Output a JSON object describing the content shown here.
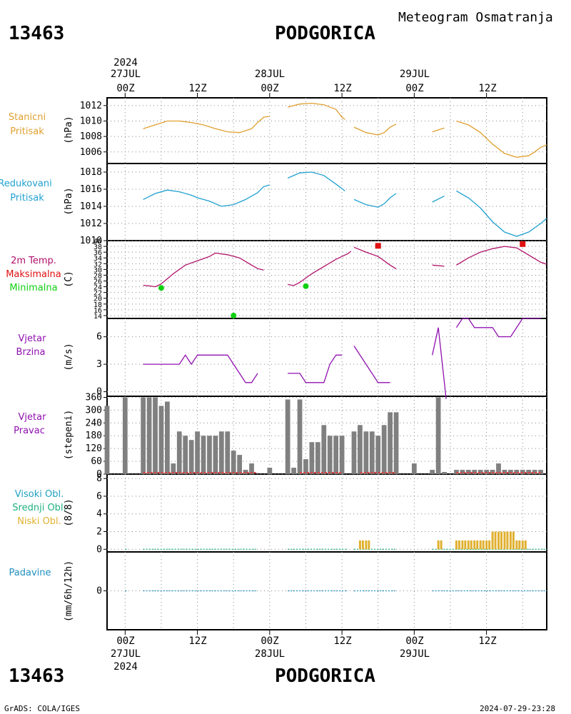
{
  "header": {
    "station_id": "13463",
    "station_name": "PODGORICA",
    "title": "Meteogram Osmatranja"
  },
  "footer": {
    "station_id": "13463",
    "station_name": "PODGORICA",
    "credit": "GrADS: COLA/IGES",
    "timestamp": "2024-07-29-23:28"
  },
  "time_axis": {
    "year": "2024",
    "day_labels": [
      "27JUL",
      "28JUL",
      "29JUL"
    ],
    "ticks": [
      {
        "hour": 0,
        "label": "00Z"
      },
      {
        "hour": 12,
        "label": "12Z"
      },
      {
        "hour": 24,
        "label": "00Z"
      },
      {
        "hour": 36,
        "label": "12Z"
      },
      {
        "hour": 48,
        "label": "00Z"
      },
      {
        "hour": 60,
        "label": "12Z"
      }
    ],
    "range_hours": [
      -3,
      70
    ]
  },
  "colors": {
    "station_pressure": "#e0a030",
    "reduced_pressure": "#20a0d0",
    "temperature": "#b0106a",
    "max_temp": "#e01010",
    "min_temp": "#10d010",
    "wind": "#9010b0",
    "wind_dir_bar": "#808080",
    "low_cloud": "#e0b030",
    "mid_cloud": "#20b080",
    "high_cloud": "#20a0c0",
    "precip": "#2090c0"
  },
  "chart_data": [
    {
      "type": "line",
      "panel": "station_pressure",
      "labels": [
        "Stanicni",
        "Pritisak"
      ],
      "ylabel": "(hPa)",
      "ylim": [
        1004.5,
        1013
      ],
      "yticks": [
        1006,
        1008,
        1010,
        1012
      ],
      "segments": [
        [
          [
            3,
            1009.0
          ],
          [
            5,
            1009.5
          ],
          [
            7,
            1010.0
          ],
          [
            9,
            1010.0
          ],
          [
            11,
            1009.8
          ],
          [
            13,
            1009.5
          ],
          [
            15,
            1009.0
          ],
          [
            17,
            1008.6
          ],
          [
            19,
            1008.5
          ],
          [
            21,
            1009.0
          ],
          [
            22,
            1009.8
          ],
          [
            23,
            1010.5
          ],
          [
            24,
            1010.6
          ]
        ],
        [
          [
            27,
            1011.8
          ],
          [
            29,
            1012.2
          ],
          [
            31,
            1012.3
          ],
          [
            33,
            1012.1
          ],
          [
            35,
            1011.5
          ],
          [
            36,
            1010.5
          ],
          [
            36.5,
            1010.2
          ]
        ],
        [
          [
            38,
            1009.2
          ],
          [
            40,
            1008.5
          ],
          [
            42,
            1008.2
          ],
          [
            43,
            1008.5
          ],
          [
            44,
            1009.2
          ],
          [
            45,
            1009.6
          ]
        ],
        [
          [
            51,
            1008.6
          ],
          [
            53,
            1009.1
          ]
        ],
        [
          [
            55,
            1010.0
          ],
          [
            57,
            1009.5
          ],
          [
            59,
            1008.5
          ],
          [
            61,
            1007.0
          ],
          [
            63,
            1005.8
          ],
          [
            65,
            1005.3
          ],
          [
            67,
            1005.5
          ],
          [
            68,
            1006.0
          ],
          [
            69,
            1006.6
          ],
          [
            70,
            1006.9
          ]
        ]
      ]
    },
    {
      "type": "line",
      "panel": "reduced_pressure",
      "labels": [
        "Redukovani",
        "Pritisak"
      ],
      "ylabel": "(hPa)",
      "ylim": [
        1010,
        1019
      ],
      "yticks": [
        1010,
        1012,
        1014,
        1016,
        1018
      ],
      "segments": [
        [
          [
            3,
            1014.8
          ],
          [
            5,
            1015.5
          ],
          [
            7,
            1015.9
          ],
          [
            9,
            1015.7
          ],
          [
            11,
            1015.3
          ],
          [
            12,
            1015.0
          ],
          [
            14,
            1014.6
          ],
          [
            16,
            1014.0
          ],
          [
            18,
            1014.2
          ],
          [
            20,
            1014.8
          ],
          [
            22,
            1015.6
          ],
          [
            23,
            1016.3
          ],
          [
            24,
            1016.5
          ]
        ],
        [
          [
            27,
            1017.3
          ],
          [
            29,
            1017.9
          ],
          [
            31,
            1018.0
          ],
          [
            33,
            1017.6
          ],
          [
            35,
            1016.6
          ],
          [
            36.5,
            1015.8
          ]
        ],
        [
          [
            38,
            1014.8
          ],
          [
            40,
            1014.2
          ],
          [
            42,
            1013.9
          ],
          [
            43,
            1014.3
          ],
          [
            44,
            1015.0
          ],
          [
            45,
            1015.5
          ]
        ],
        [
          [
            51,
            1014.5
          ],
          [
            53,
            1015.2
          ]
        ],
        [
          [
            55,
            1015.8
          ],
          [
            57,
            1015.0
          ],
          [
            59,
            1013.8
          ],
          [
            61,
            1012.2
          ],
          [
            63,
            1011.0
          ],
          [
            65,
            1010.5
          ],
          [
            67,
            1011.0
          ],
          [
            69,
            1012.0
          ],
          [
            70,
            1012.6
          ]
        ]
      ]
    },
    {
      "type": "line",
      "panel": "temperature",
      "labels": [
        "2m Temp.",
        "Maksimalna",
        "Minimalna"
      ],
      "ylabel": "(C)",
      "ylim": [
        13,
        40
      ],
      "ytick_labels": [
        "14",
        "16",
        "18",
        "20",
        "22",
        "24",
        "26",
        "28",
        "30",
        "32",
        "34",
        "36",
        "38",
        "40"
      ],
      "segments": [
        [
          [
            3,
            24.5
          ],
          [
            4,
            24.3
          ],
          [
            5,
            24.0
          ],
          [
            6,
            25.0
          ],
          [
            8,
            28.5
          ],
          [
            10,
            31.5
          ],
          [
            12,
            33.0
          ],
          [
            14,
            34.5
          ],
          [
            15,
            35.7
          ],
          [
            17,
            35.1
          ],
          [
            19,
            34.0
          ],
          [
            21,
            31.5
          ],
          [
            22,
            30.3
          ],
          [
            23,
            29.8
          ]
        ],
        [
          [
            27,
            24.8
          ],
          [
            28,
            24.4
          ],
          [
            29,
            25.5
          ],
          [
            31,
            28.5
          ],
          [
            33,
            31.0
          ],
          [
            35,
            33.5
          ],
          [
            37,
            35.5
          ],
          [
            37.5,
            36.3
          ]
        ],
        [
          [
            38,
            37.7
          ],
          [
            40,
            36.0
          ],
          [
            42,
            34.5
          ],
          [
            44,
            31.5
          ],
          [
            45,
            30.2
          ]
        ],
        [
          [
            51,
            31.5
          ],
          [
            53,
            31.1
          ]
        ],
        [
          [
            55,
            31.5
          ],
          [
            57,
            34.0
          ],
          [
            59,
            36.0
          ],
          [
            61,
            37.2
          ],
          [
            63,
            38.0
          ],
          [
            65,
            37.5
          ],
          [
            67,
            35.0
          ],
          [
            69,
            32.5
          ],
          [
            70,
            31.8
          ]
        ]
      ],
      "max_temp_points": [
        [
          42,
          38.2
        ],
        [
          66,
          38.8
        ]
      ],
      "min_temp_points": [
        [
          6,
          23.6
        ],
        [
          30,
          24.2
        ],
        [
          18,
          14.0
        ]
      ]
    },
    {
      "type": "line",
      "panel": "wind_speed",
      "labels": [
        "Vjetar",
        "Brzina"
      ],
      "ylabel": "(m/s)",
      "ylim": [
        -0.5,
        8
      ],
      "yticks": [
        0,
        3,
        6
      ],
      "segments": [
        [
          [
            3,
            3.0
          ],
          [
            6,
            3.0
          ],
          [
            9,
            3.0
          ],
          [
            10,
            4.0
          ],
          [
            11,
            3.0
          ],
          [
            12,
            4.0
          ],
          [
            14,
            4.0
          ],
          [
            17,
            4.0
          ],
          [
            19,
            2.0
          ],
          [
            20,
            1.0
          ],
          [
            21,
            1.0
          ],
          [
            22,
            2.0
          ]
        ],
        [
          [
            27,
            2.0
          ],
          [
            29,
            2.0
          ],
          [
            30,
            1.0
          ],
          [
            32,
            1.0
          ],
          [
            33,
            1.0
          ],
          [
            34,
            3.0
          ],
          [
            35,
            4.0
          ],
          [
            36,
            4.0
          ]
        ],
        [
          [
            38,
            5.0
          ],
          [
            40,
            3.0
          ],
          [
            42,
            1.0
          ],
          [
            44,
            1.0
          ]
        ],
        [
          [
            51,
            4.0
          ],
          [
            52,
            7.0
          ],
          [
            53.3,
            -0.8
          ]
        ],
        [
          [
            55,
            7.0
          ],
          [
            56,
            8.0
          ],
          [
            57,
            8.0
          ],
          [
            58,
            7.0
          ],
          [
            59,
            7.0
          ],
          [
            61,
            7.0
          ],
          [
            62,
            6.0
          ],
          [
            64,
            6.0
          ],
          [
            66,
            8.0
          ],
          [
            69,
            8.0
          ]
        ]
      ]
    },
    {
      "type": "bar",
      "panel": "wind_direction",
      "labels": [
        "Vjetar",
        "Pravac"
      ],
      "ylabel": "(stepeni)",
      "ylim": [
        0,
        365
      ],
      "yticks": [
        0,
        60,
        120,
        180,
        240,
        300,
        360
      ],
      "x": [
        -3,
        0,
        3,
        4,
        5,
        6,
        7,
        8,
        9,
        10,
        11,
        12,
        13,
        14,
        15,
        16,
        17,
        18,
        19,
        20,
        21,
        22,
        24,
        27,
        28,
        29,
        30,
        31,
        32,
        33,
        34,
        35,
        36,
        38,
        39,
        40,
        41,
        42,
        43,
        44,
        45,
        46,
        48,
        51,
        52,
        53,
        55,
        56,
        57,
        58,
        59,
        60,
        61,
        62,
        63,
        64,
        65,
        66,
        67,
        68,
        69
      ],
      "values": [
        320,
        360,
        360,
        360,
        360,
        320,
        340,
        50,
        200,
        180,
        160,
        200,
        180,
        180,
        180,
        200,
        200,
        110,
        90,
        20,
        50,
        0,
        30,
        350,
        30,
        350,
        70,
        150,
        150,
        230,
        180,
        180,
        180,
        200,
        230,
        200,
        200,
        180,
        230,
        290,
        290,
        0,
        50,
        20,
        360,
        10,
        20,
        20,
        20,
        20,
        20,
        20,
        20,
        50,
        20,
        20,
        20,
        20,
        20,
        20,
        20
      ]
    },
    {
      "type": "bar",
      "panel": "clouds",
      "labels": [
        "Visoki Obl.",
        "Srednji Obl.",
        "Niski Obl."
      ],
      "ylabel": "(8/8)",
      "ylim": [
        -0.3,
        8.5
      ],
      "yticks": [
        0,
        2,
        4,
        6,
        8
      ],
      "x": [
        39,
        40,
        52,
        55,
        56,
        57,
        58,
        59,
        60,
        61,
        62,
        63,
        64,
        65,
        66
      ],
      "low_values": [
        1,
        1,
        1,
        1,
        1,
        1,
        1,
        1,
        1,
        2,
        2,
        2,
        2,
        1,
        1
      ]
    },
    {
      "type": "line",
      "panel": "precipitation",
      "labels": [
        "Padavine"
      ],
      "ylabel": "(mm/6h/12h)",
      "ylim": [
        -4,
        4
      ],
      "yticks": [
        0
      ],
      "segments": [
        [
          [
            0,
            0
          ],
          [
            0.3,
            0
          ]
        ],
        [
          [
            3,
            0
          ],
          [
            22,
            0
          ]
        ],
        [
          [
            27,
            0
          ],
          [
            37,
            0
          ]
        ],
        [
          [
            38,
            0
          ],
          [
            45,
            0
          ]
        ],
        [
          [
            51,
            0
          ],
          [
            70,
            0
          ]
        ]
      ]
    }
  ]
}
